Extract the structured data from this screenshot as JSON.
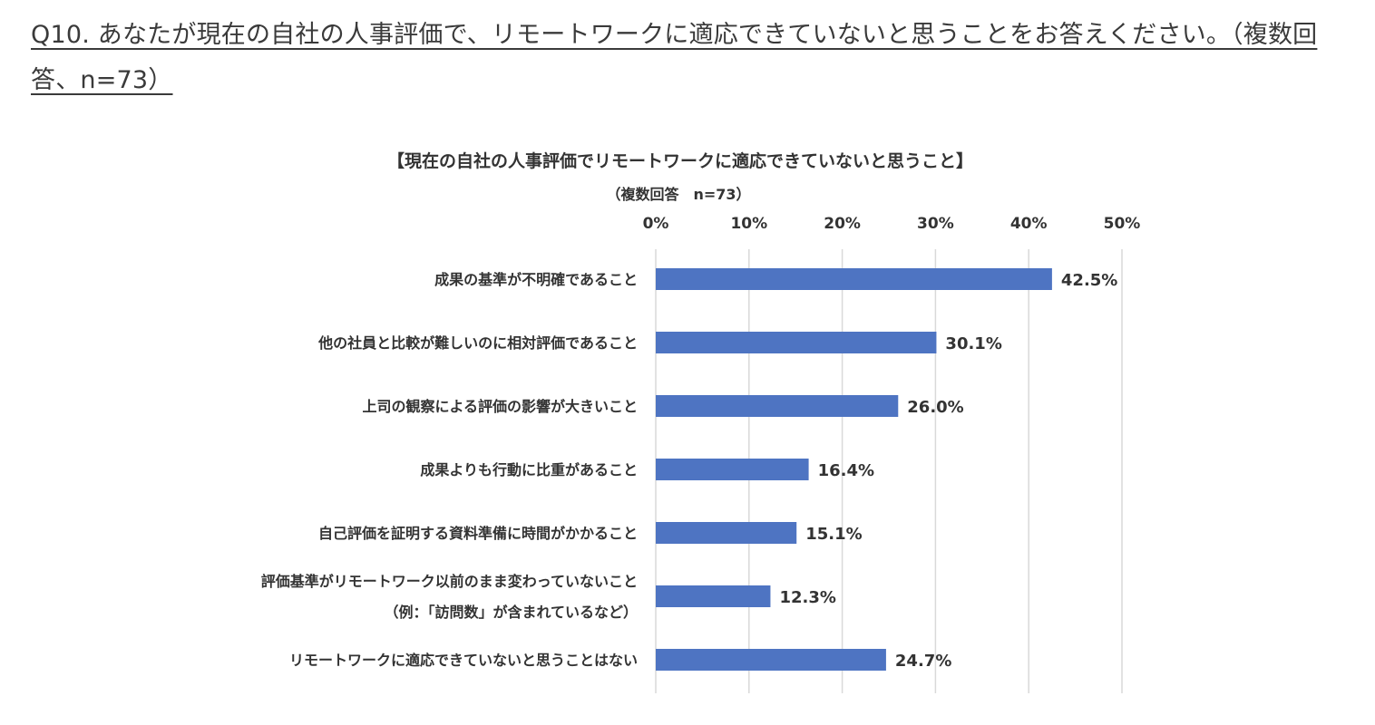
{
  "question": "Q10. あなたが現在の自社の人事評価で、リモートワークに適応できていないと思うことをお答えください。（複数回答、n=73）",
  "chart_data": {
    "type": "bar",
    "orientation": "horizontal",
    "title": "【現在の自社の人事評価でリモートワークに適応できていないと思うこと】",
    "subtitle": "（複数回答　n=73）",
    "xlim": [
      0,
      50
    ],
    "ticks": [
      0,
      10,
      20,
      30,
      40,
      50
    ],
    "tick_labels": [
      "0%",
      "10%",
      "20%",
      "30%",
      "40%",
      "50%"
    ],
    "grid": true,
    "bar_color": "#4e74c2",
    "categories": [
      [
        "成果の基準が不明確であること"
      ],
      [
        "他の社員と比較が難しいのに相対評価であること"
      ],
      [
        "上司の観察による評価の影響が大きいこと"
      ],
      [
        "成果よりも行動に比重があること"
      ],
      [
        "自己評価を証明する資料準備に時間がかかること"
      ],
      [
        "評価基準がリモートワーク以前のまま変わっていないこと",
        "（例：「訪問数」が含まれているなど）"
      ],
      [
        "リモートワークに適応できていないと思うことはない"
      ]
    ],
    "values": [
      42.5,
      30.1,
      26.0,
      16.4,
      15.1,
      12.3,
      24.7
    ],
    "value_labels": [
      "42.5%",
      "30.1%",
      "26.0%",
      "16.4%",
      "15.1%",
      "12.3%",
      "24.7%"
    ]
  }
}
